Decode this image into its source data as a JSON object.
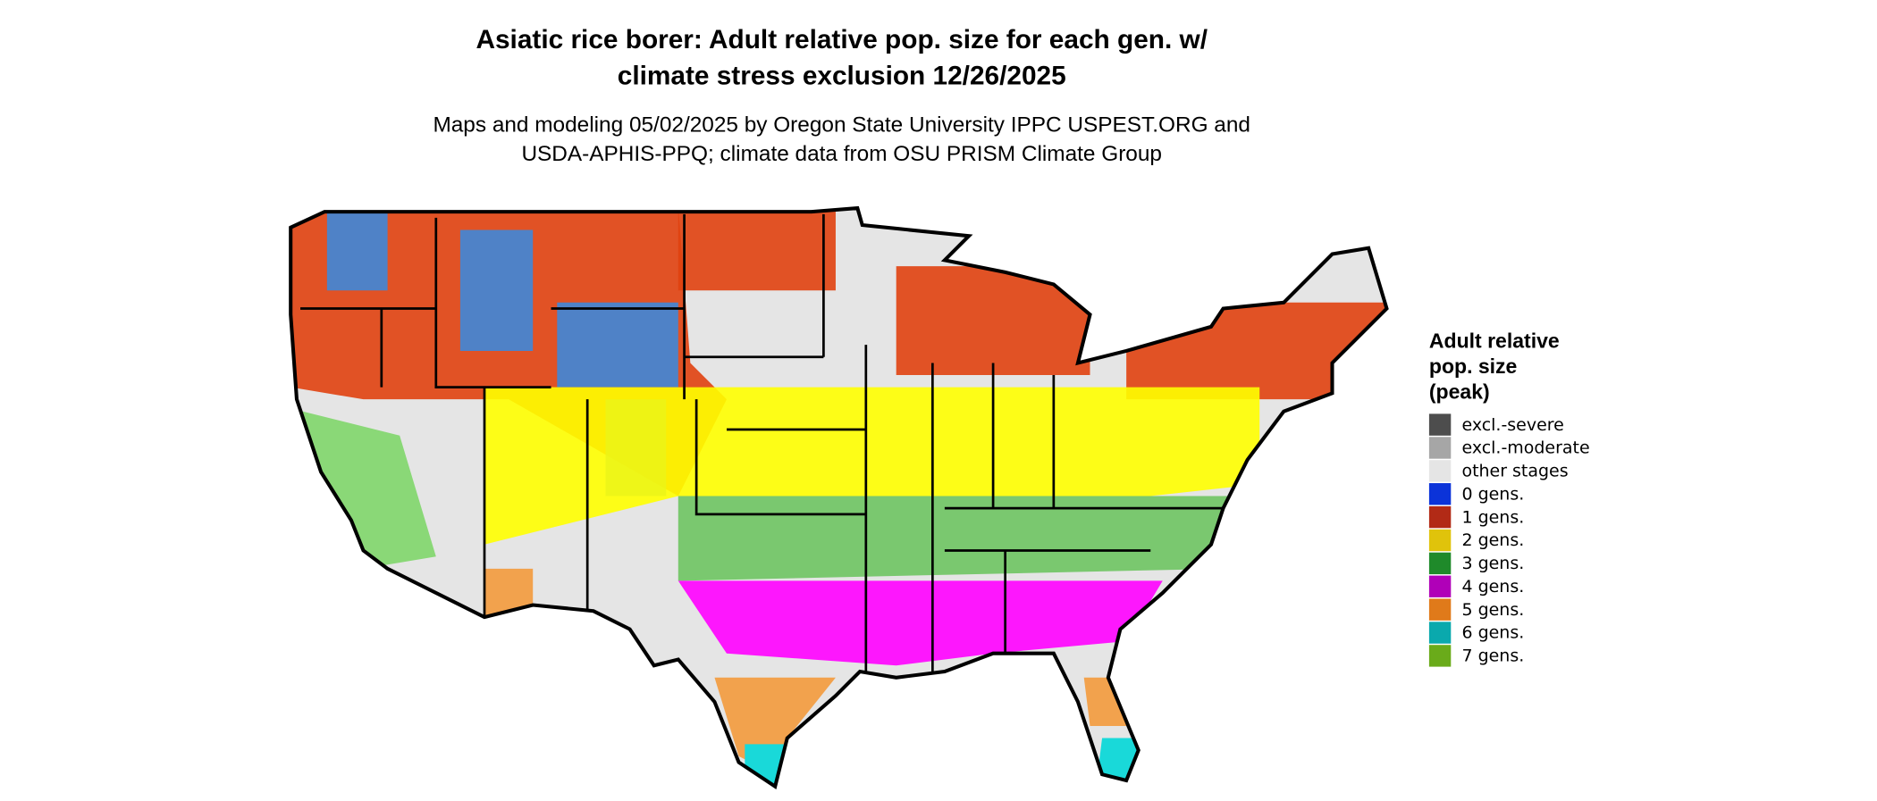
{
  "title": [
    "Asiatic rice borer: Adult relative pop. size for each gen. w/",
    "climate stress exclusion 12/26/2025"
  ],
  "subtitle": [
    "Maps and modeling 05/02/2025 by Oregon State University IPPC USPEST.ORG and",
    "USDA-APHIS-PPQ; climate data from OSU PRISM Climate Group"
  ],
  "legend": {
    "title": [
      "Adult relative",
      "pop. size",
      "(peak)"
    ],
    "items": [
      {
        "label": "excl.-severe",
        "color": "#4d4d4d"
      },
      {
        "label": "excl.-moderate",
        "color": "#a6a6a6"
      },
      {
        "label": "other stages",
        "color": "#e5e5e5"
      },
      {
        "label": "0 gens.",
        "color": "#0b33d9"
      },
      {
        "label": "1 gens.",
        "color": "#b22a16"
      },
      {
        "label": "2 gens.",
        "color": "#e0c30b"
      },
      {
        "label": "3 gens.",
        "color": "#1f8a2a"
      },
      {
        "label": "4 gens.",
        "color": "#b000b8"
      },
      {
        "label": "5 gens.",
        "color": "#e07a1a"
      },
      {
        "label": "6 gens.",
        "color": "#0aa9ad"
      },
      {
        "label": "7 gens.",
        "color": "#6aab1a"
      }
    ]
  }
}
